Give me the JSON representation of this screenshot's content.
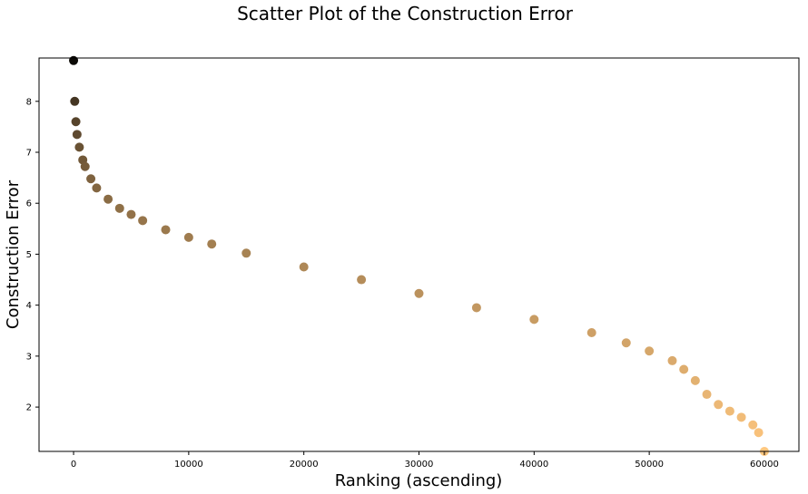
{
  "chart_data": {
    "type": "scatter",
    "title": "Scatter Plot of the Construction Error",
    "xlabel": "Ranking (ascending)",
    "ylabel": "Construction Error",
    "xlim": [
      -3000,
      63000
    ],
    "ylim": [
      1.13,
      8.85
    ],
    "xticks": [
      0,
      10000,
      20000,
      30000,
      40000,
      50000,
      60000
    ],
    "yticks": [
      2,
      3,
      4,
      5,
      6,
      7,
      8
    ],
    "grid": false,
    "colormap": "copper",
    "color_low": "#000000",
    "color_high": "#ffc77f",
    "series": [
      {
        "x": [
          0,
          100,
          200,
          300,
          500,
          800,
          1000,
          1500,
          2000,
          3000,
          4000,
          5000,
          6000,
          8000,
          10000,
          12000,
          15000,
          20000,
          25000,
          30000,
          35000,
          40000,
          45000,
          48000,
          50000,
          52000,
          53000,
          54000,
          55000,
          56000,
          57000,
          58000,
          59000,
          59500,
          60000
        ],
        "y": [
          8.8,
          8.0,
          7.6,
          7.35,
          7.1,
          6.85,
          6.72,
          6.48,
          6.3,
          6.08,
          5.9,
          5.78,
          5.66,
          5.48,
          5.33,
          5.2,
          5.02,
          4.75,
          4.5,
          4.23,
          3.95,
          3.72,
          3.46,
          3.26,
          3.1,
          2.91,
          2.74,
          2.52,
          2.25,
          2.05,
          1.92,
          1.8,
          1.65,
          1.5,
          1.13
        ]
      }
    ]
  }
}
